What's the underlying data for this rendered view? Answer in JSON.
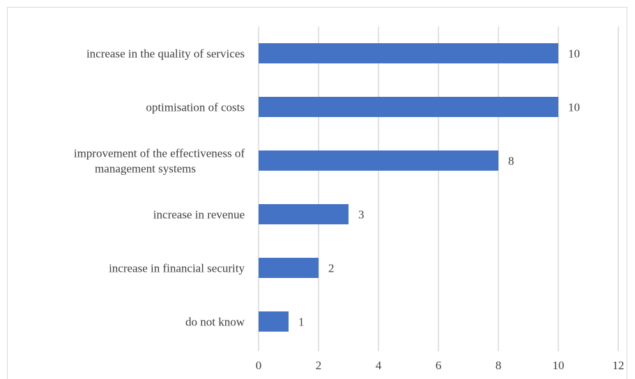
{
  "chart_data": {
    "type": "bar",
    "orientation": "horizontal",
    "categories": [
      "increase in the quality of services",
      "optimisation of costs",
      "improvement of the effectiveness of management systems",
      "increase in revenue",
      "increase in financial security",
      "do not know"
    ],
    "category_label_lines": [
      [
        "increase in the quality of services"
      ],
      [
        "optimisation of costs"
      ],
      [
        "improvement of the effectiveness of",
        "management systems"
      ],
      [
        "increase in revenue"
      ],
      [
        "increase in financial security"
      ],
      [
        "do not know"
      ]
    ],
    "values": [
      10,
      10,
      8,
      3,
      2,
      1
    ],
    "data_labels": [
      "10",
      "10",
      "8",
      "3",
      "2",
      "1"
    ],
    "xlim": [
      0,
      12
    ],
    "x_ticks": [
      "0",
      "2",
      "4",
      "6",
      "8",
      "10",
      "12"
    ],
    "grid": "vertical",
    "bar_color": "#4472c4",
    "title": "",
    "xlabel": "",
    "ylabel": ""
  }
}
